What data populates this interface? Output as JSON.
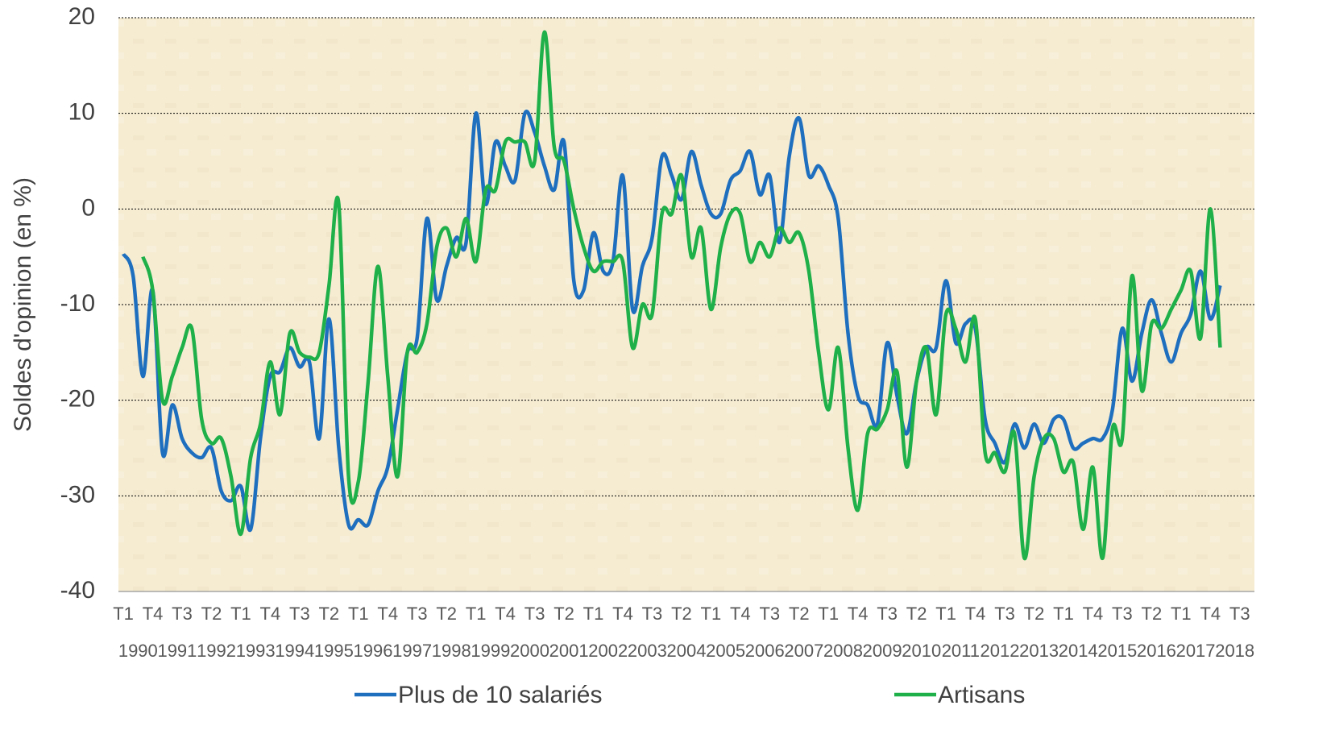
{
  "chart_data": {
    "type": "line",
    "ylabel": "Soldes d'opinion (en %)",
    "categories": [
      "T1",
      null,
      null,
      "T4",
      null,
      null,
      "T3",
      null,
      null,
      "T2",
      null,
      null,
      "T1",
      null,
      null,
      "T4",
      null,
      null,
      "T3",
      null,
      null,
      "T2",
      null,
      null,
      "T1",
      null,
      null,
      "T4",
      null,
      null,
      "T3",
      null,
      null,
      "T2",
      null,
      null,
      "T1",
      null,
      null,
      "T4",
      null,
      null,
      "T3",
      null,
      null,
      "T2",
      null,
      null,
      "T1",
      null,
      null,
      "T4",
      null,
      null,
      "T3",
      null,
      null,
      "T2",
      null,
      null,
      "T1",
      null,
      null,
      "T4",
      null,
      null,
      "T3",
      null,
      null,
      "T2",
      null,
      null,
      "T1",
      null,
      null,
      "T4",
      null,
      null,
      "T3",
      null,
      null,
      "T2",
      null,
      null,
      "T1",
      null,
      null,
      "T4",
      null,
      null,
      "T3",
      null,
      null,
      "T2",
      null,
      null,
      "T1",
      null,
      null,
      "T4",
      null,
      null,
      "T3",
      null,
      null,
      "T2",
      null,
      null,
      "T1",
      null,
      null,
      "T4",
      null,
      null,
      "T3",
      null
    ],
    "year_groups": [
      "1990",
      "1991",
      "1992",
      "1993",
      "1994",
      "1995",
      "1996",
      "1997",
      "1998",
      "1999",
      "2000",
      "2001",
      "2002",
      "2003",
      "2004",
      "2005",
      "2006",
      "2007",
      "2008",
      "2009",
      "2010",
      "2011",
      "2012",
      "2013",
      "2014",
      "2015",
      "2016",
      "2017",
      "2018"
    ],
    "series": [
      {
        "name": "Plus de 10 salariés",
        "color": "#1f6fbf",
        "values": [
          -4.7,
          -7,
          -17.5,
          -8.5,
          -25.5,
          -20.5,
          -24,
          -25.5,
          -26,
          -25,
          -29.5,
          -30.5,
          -29,
          -33.5,
          -24,
          -17.5,
          -17,
          -14.5,
          -16.5,
          -16,
          -24,
          -11.5,
          -25,
          -33,
          -32.5,
          -33,
          -29.5,
          -27,
          -21,
          -15,
          -13.5,
          -1,
          -9.5,
          -6,
          -3,
          -3.5,
          10,
          0.5,
          7,
          4.5,
          3,
          10,
          8,
          4.5,
          2,
          7,
          -7.5,
          -8.5,
          -2.5,
          -6.5,
          -5.5,
          3.5,
          -10.5,
          -6,
          -3,
          5.5,
          3.5,
          1,
          6,
          2.5,
          -0.5,
          -0.5,
          3,
          4,
          6,
          1.5,
          3.5,
          -3.5,
          5.5,
          9.5,
          3.5,
          4.5,
          2.5,
          -1,
          -13,
          -19.5,
          -20.5,
          -22.5,
          -14,
          -19.5,
          -23.5,
          -18,
          -14.5,
          -14.5,
          -7.5,
          -14,
          -12,
          -12.5,
          -22,
          -24.5,
          -26.5,
          -22.5,
          -25,
          -22.5,
          -24.5,
          -22,
          -22,
          -25,
          -24.5,
          -24,
          -24,
          -21,
          -12.5,
          -18,
          -13,
          -9.5,
          -13,
          -16,
          -13,
          -11,
          -6.5,
          -11.5,
          -8,
          null,
          null,
          null
        ]
      },
      {
        "name": "Artisans",
        "color": "#1fb04a",
        "values": [
          null,
          null,
          -5,
          -8.5,
          -20,
          -17.5,
          -14.5,
          -12.5,
          -22,
          -24.5,
          -24,
          -28,
          -34,
          -26,
          -22.5,
          -16,
          -21.5,
          -13,
          -15,
          -15.5,
          -15,
          -8,
          0.5,
          -28,
          -28.5,
          -18,
          -6,
          -17.5,
          -28,
          -15,
          -15,
          -12,
          -4,
          -2,
          -5,
          -1,
          -5.5,
          2,
          2,
          7,
          7,
          7,
          5,
          18.5,
          6.5,
          5,
          0,
          -4,
          -6.5,
          -5.5,
          -5.5,
          -5.5,
          -14.5,
          -10,
          -11,
          -0.5,
          -0.5,
          3.5,
          -5,
          -2,
          -10.5,
          -4,
          -0.5,
          -0.5,
          -5.5,
          -3.5,
          -5,
          -2,
          -3.5,
          -2.5,
          -6.5,
          -15,
          -21,
          -14.5,
          -25,
          -31.5,
          -23.5,
          -23,
          -21,
          -17,
          -27,
          -18,
          -14.5,
          -21.5,
          -11,
          -12.5,
          -16,
          -11.5,
          -25.5,
          -25.5,
          -27.5,
          -23.5,
          -36.5,
          -28,
          -24,
          -24,
          -27.5,
          -26.5,
          -33.5,
          -27,
          -36.5,
          -23,
          -24,
          -7,
          -19,
          -12,
          -12.5,
          -10.5,
          -8.5,
          -6.5,
          -13.5,
          0,
          -14.5,
          null,
          null,
          null
        ]
      }
    ],
    "ylim": [
      -40,
      20
    ],
    "yticks": [
      -40,
      -30,
      -20,
      -10,
      0,
      10,
      20
    ],
    "grid": true,
    "legend": "bottom"
  }
}
